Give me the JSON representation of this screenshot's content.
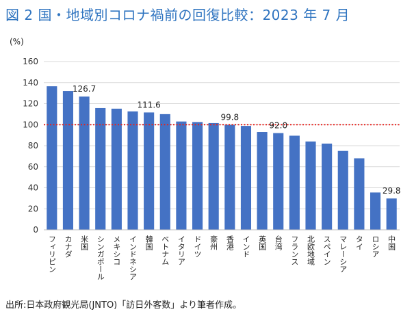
{
  "title": "図 2  国・地域別コロナ禍前の回復比較：2023 年 7 月",
  "unit_label": "(%)",
  "source": "出所:日本政府観光局(JNTO)「訪日外客数」より筆者作成。",
  "chart_data": {
    "type": "bar",
    "title": "図 2  国・地域別コロナ禍前の回復比較：2023 年 7 月",
    "ylabel": "(%)",
    "ylim": [
      0,
      160
    ],
    "yticks": [
      0,
      20,
      40,
      60,
      80,
      100,
      120,
      140,
      160
    ],
    "grid": true,
    "reference_line": {
      "value": 100,
      "color": "#e8231e",
      "style": "dotted"
    },
    "bar_color": "#4472c4",
    "categories": [
      "フィリピン",
      "カナダ",
      "米国",
      "シンガポール",
      "メキシコ",
      "インドネシア",
      "韓国",
      "ベトナム",
      "イタリア",
      "ドイツ",
      "豪州",
      "香港",
      "インド",
      "英国",
      "台湾",
      "フランス",
      "北欧地域",
      "スペイン",
      "マレーシア",
      "タイ",
      "ロシア",
      "中国"
    ],
    "values": [
      136.5,
      132.0,
      126.7,
      115.8,
      115.2,
      112.6,
      111.6,
      110.0,
      103.0,
      102.5,
      101.5,
      99.8,
      98.8,
      93.0,
      92.0,
      89.5,
      84.0,
      82.0,
      75.0,
      68.0,
      35.5,
      29.8
    ],
    "data_labels": [
      {
        "index": 2,
        "text": "126.7"
      },
      {
        "index": 6,
        "text": "111.6"
      },
      {
        "index": 11,
        "text": "99.8"
      },
      {
        "index": 14,
        "text": "92.0"
      },
      {
        "index": 21,
        "text": "29.8"
      }
    ]
  }
}
